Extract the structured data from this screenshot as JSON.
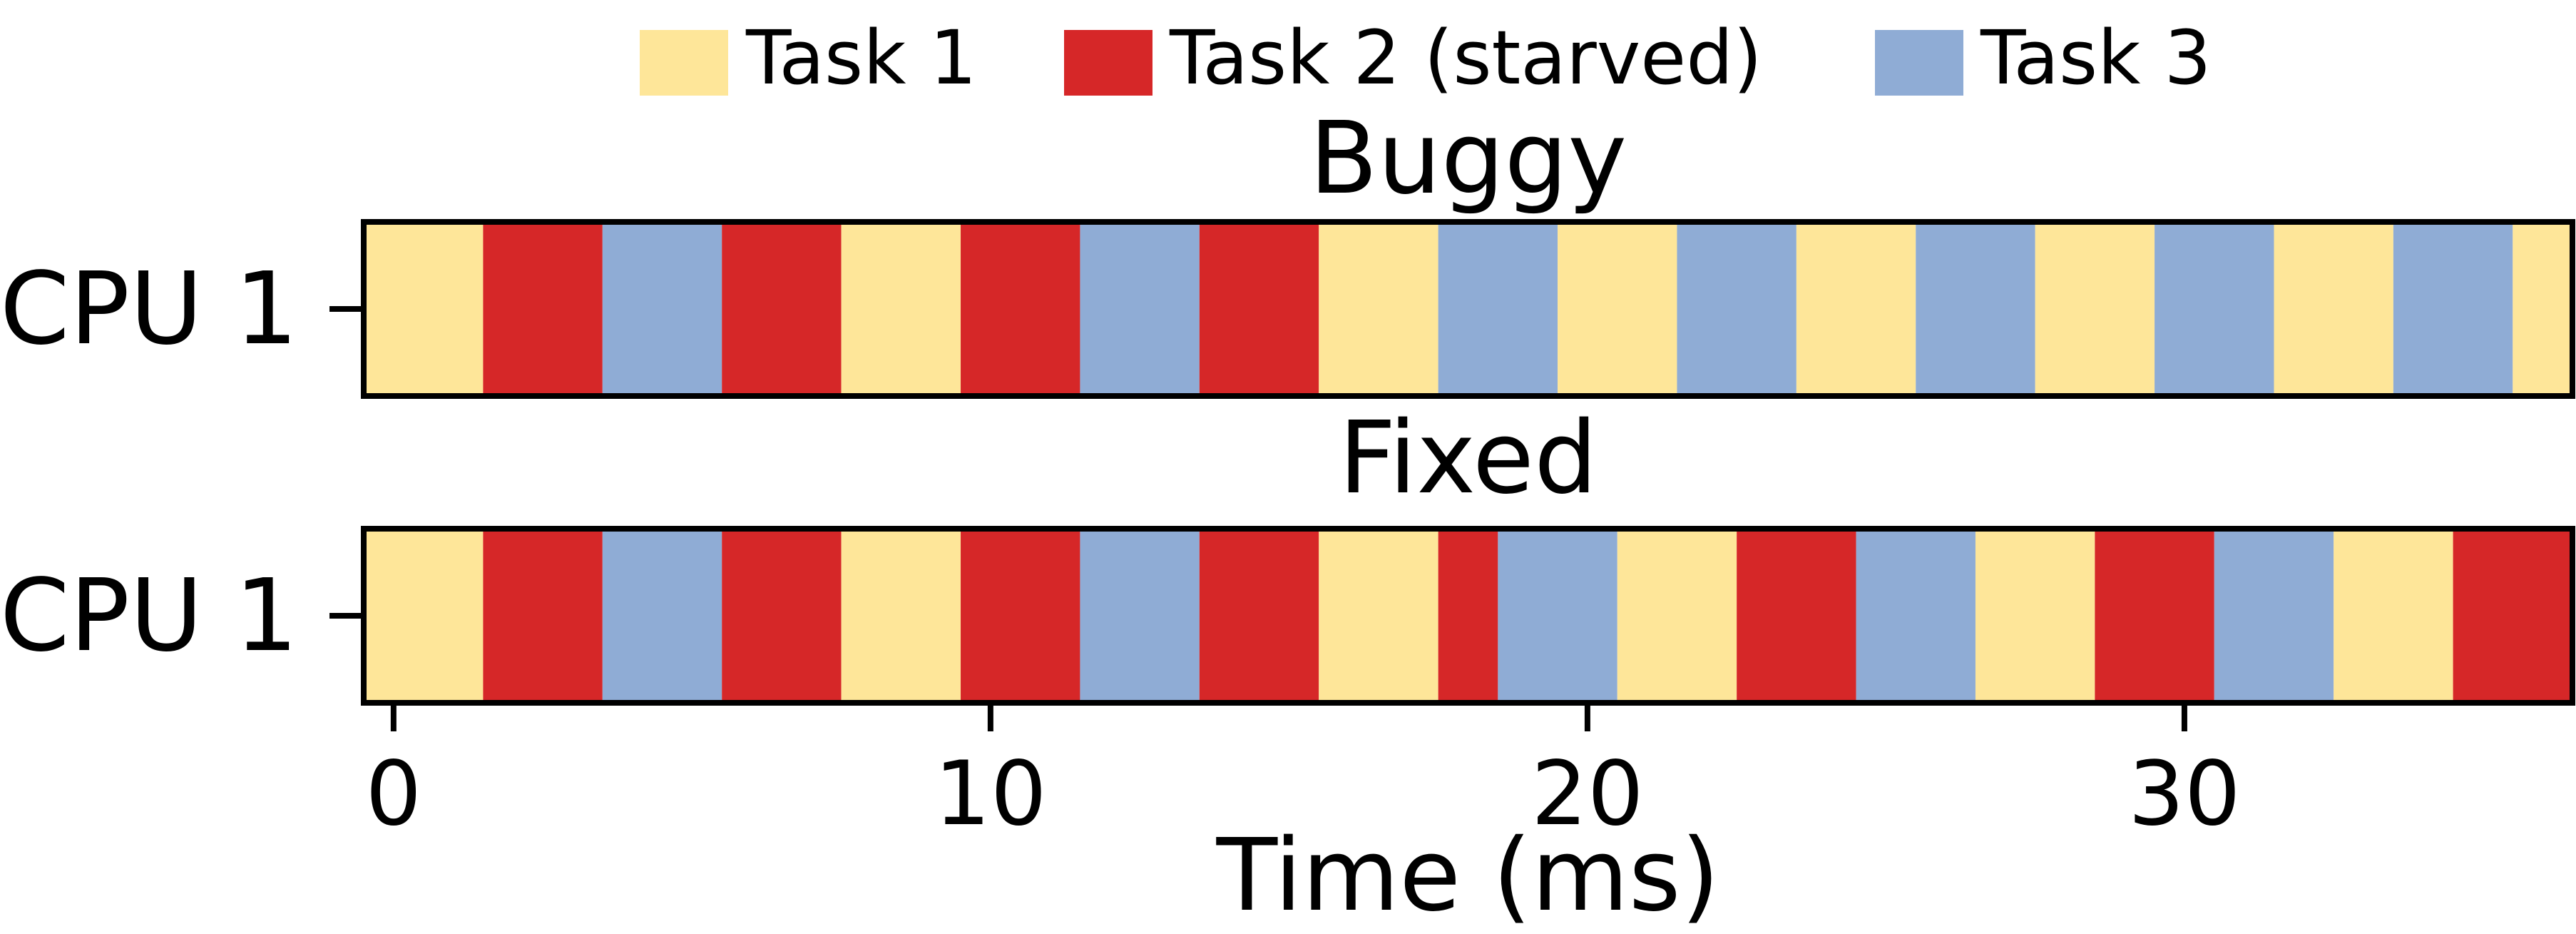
{
  "chart_data": {
    "type": "timeline",
    "legend": {
      "placement": "top-center",
      "entries": [
        {
          "task": "task1",
          "label": "Task 1",
          "color": "#FEE699"
        },
        {
          "task": "task2",
          "label": "Task 2 (starved)",
          "color": "#D62728"
        },
        {
          "task": "task3",
          "label": "Task 3",
          "color": "#8FACD5"
        }
      ]
    },
    "xlabel": "Time (ms)",
    "xlim": [
      -0.5,
      36.5
    ],
    "xticks": [
      0,
      10,
      20,
      30
    ],
    "panels": [
      {
        "title": "Buggy",
        "ylabel": "CPU 1",
        "segments": [
          {
            "task": "task1",
            "start": -0.5,
            "end": 1.5
          },
          {
            "task": "task2",
            "start": 1.5,
            "end": 3.5
          },
          {
            "task": "task3",
            "start": 3.5,
            "end": 5.5
          },
          {
            "task": "task2",
            "start": 5.5,
            "end": 7.5
          },
          {
            "task": "task1",
            "start": 7.5,
            "end": 9.5
          },
          {
            "task": "task2",
            "start": 9.5,
            "end": 11.5
          },
          {
            "task": "task3",
            "start": 11.5,
            "end": 13.5
          },
          {
            "task": "task2",
            "start": 13.5,
            "end": 15.5
          },
          {
            "task": "task1",
            "start": 15.5,
            "end": 17.5
          },
          {
            "task": "task3",
            "start": 17.5,
            "end": 19.5
          },
          {
            "task": "task1",
            "start": 19.5,
            "end": 21.5
          },
          {
            "task": "task3",
            "start": 21.5,
            "end": 23.5
          },
          {
            "task": "task1",
            "start": 23.5,
            "end": 25.5
          },
          {
            "task": "task3",
            "start": 25.5,
            "end": 27.5
          },
          {
            "task": "task1",
            "start": 27.5,
            "end": 29.5
          },
          {
            "task": "task3",
            "start": 29.5,
            "end": 31.5
          },
          {
            "task": "task1",
            "start": 31.5,
            "end": 33.5
          },
          {
            "task": "task3",
            "start": 33.5,
            "end": 35.5
          },
          {
            "task": "task1",
            "start": 35.5,
            "end": 36.5
          }
        ]
      },
      {
        "title": "Fixed",
        "ylabel": "CPU 1",
        "segments": [
          {
            "task": "task1",
            "start": -0.5,
            "end": 1.5
          },
          {
            "task": "task2",
            "start": 1.5,
            "end": 3.5
          },
          {
            "task": "task3",
            "start": 3.5,
            "end": 5.5
          },
          {
            "task": "task2",
            "start": 5.5,
            "end": 7.5
          },
          {
            "task": "task1",
            "start": 7.5,
            "end": 9.5
          },
          {
            "task": "task2",
            "start": 9.5,
            "end": 11.5
          },
          {
            "task": "task3",
            "start": 11.5,
            "end": 13.5
          },
          {
            "task": "task2",
            "start": 13.5,
            "end": 15.5
          },
          {
            "task": "task1",
            "start": 15.5,
            "end": 17.5
          },
          {
            "task": "task2",
            "start": 17.5,
            "end": 18.5
          },
          {
            "task": "task3",
            "start": 18.5,
            "end": 20.5
          },
          {
            "task": "task1",
            "start": 20.5,
            "end": 22.5
          },
          {
            "task": "task2",
            "start": 22.5,
            "end": 24.5
          },
          {
            "task": "task3",
            "start": 24.5,
            "end": 26.5
          },
          {
            "task": "task1",
            "start": 26.5,
            "end": 28.5
          },
          {
            "task": "task2",
            "start": 28.5,
            "end": 30.5
          },
          {
            "task": "task3",
            "start": 30.5,
            "end": 32.5
          },
          {
            "task": "task1",
            "start": 32.5,
            "end": 34.5
          },
          {
            "task": "task2",
            "start": 34.5,
            "end": 36.5
          }
        ]
      }
    ]
  }
}
